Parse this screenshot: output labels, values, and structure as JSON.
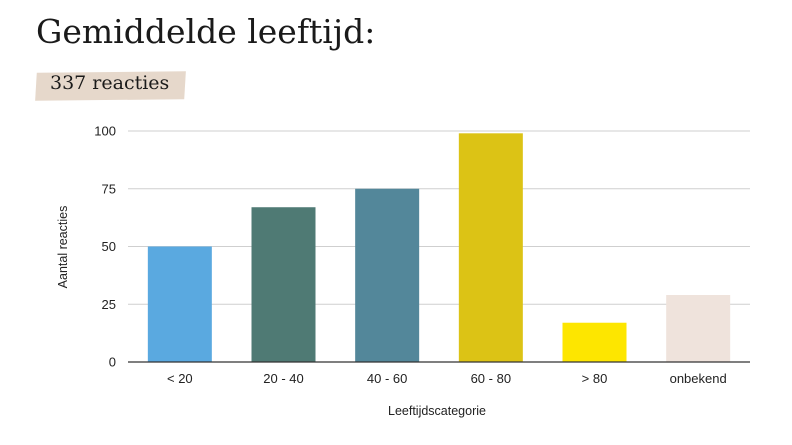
{
  "header": {
    "title": "Gemiddelde leeftijd:",
    "subtitle": "337 reacties"
  },
  "chart_data": {
    "type": "bar",
    "categories": [
      "< 20",
      "20 - 40",
      "40 - 60",
      "60 - 80",
      "> 80",
      "onbekend"
    ],
    "values": [
      50,
      67,
      75,
      99,
      17,
      29
    ],
    "colors": [
      "#5aa9e0",
      "#4f7a74",
      "#53879a",
      "#dcc315",
      "#fde600",
      "#efe3dc"
    ],
    "xlabel": "Leeftijdscategorie",
    "ylabel": "Aantal reacties",
    "ylim": [
      0,
      100
    ],
    "yticks": [
      "0",
      "25",
      "50",
      "75",
      "100"
    ],
    "grid": true,
    "legend": "none"
  }
}
